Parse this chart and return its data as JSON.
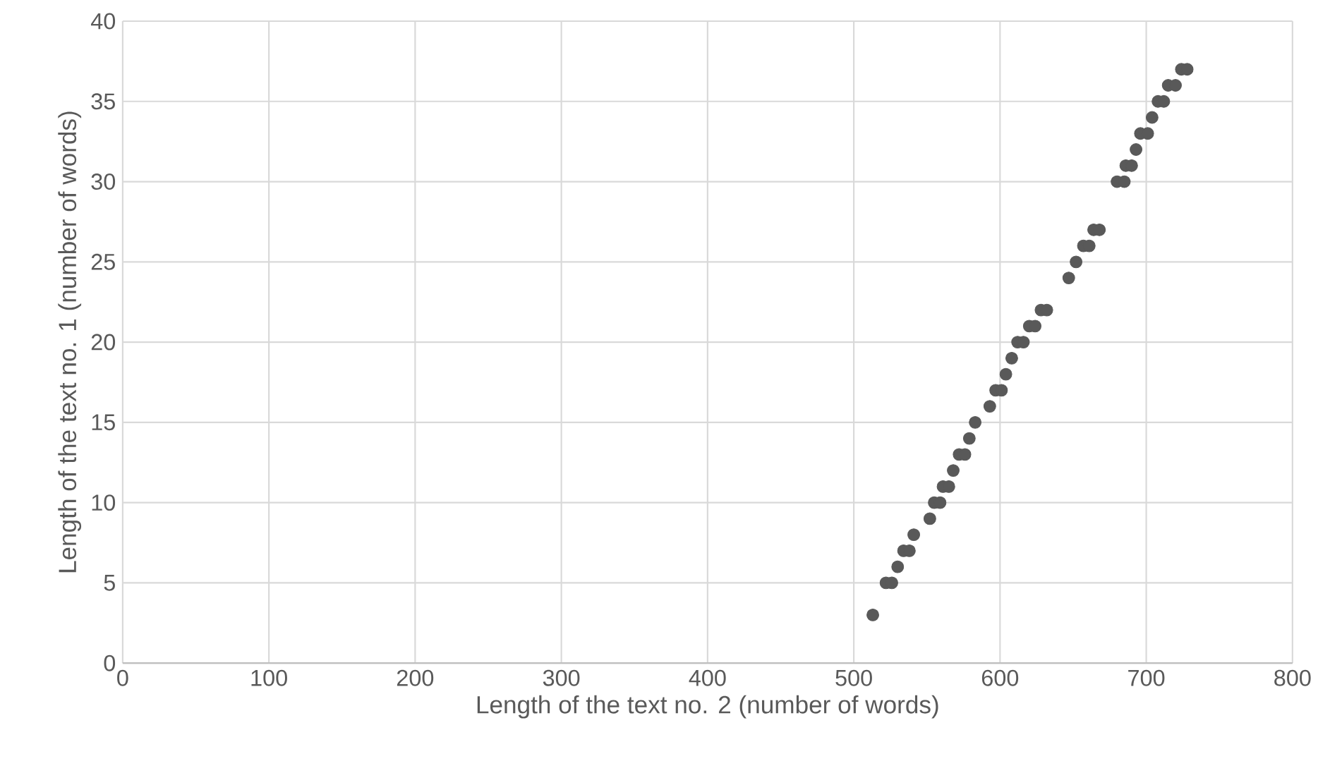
{
  "chart_data": {
    "type": "scatter",
    "xlabel": "Length of the text no. 2 (number of words)",
    "ylabel": "Length of the text no. 1 (number of words)",
    "x": [
      513,
      522,
      526,
      530,
      534,
      538,
      541,
      552,
      555,
      559,
      561,
      565,
      568,
      572,
      576,
      579,
      583,
      593,
      597,
      601,
      604,
      608,
      612,
      616,
      620,
      624,
      628,
      632,
      647,
      652,
      657,
      661,
      664,
      668,
      680,
      685,
      686,
      690,
      693,
      696,
      701,
      704,
      708,
      712,
      715,
      720,
      724,
      728
    ],
    "values": [
      3,
      5,
      5,
      6,
      7,
      7,
      8,
      9,
      10,
      10,
      11,
      11,
      12,
      13,
      13,
      14,
      15,
      16,
      17,
      17,
      18,
      19,
      20,
      20,
      21,
      21,
      22,
      22,
      24,
      25,
      26,
      26,
      27,
      27,
      30,
      30,
      31,
      31,
      32,
      33,
      33,
      34,
      35,
      35,
      36,
      36,
      37,
      37
    ],
    "color": "#595959",
    "marker": "circle",
    "xlim": [
      0,
      800
    ],
    "xticks": [
      0,
      100,
      200,
      300,
      400,
      500,
      600,
      700,
      800
    ],
    "ylim": [
      0,
      40
    ],
    "yticks": [
      0,
      5,
      10,
      15,
      20,
      25,
      30,
      35,
      40
    ],
    "grid": true
  }
}
